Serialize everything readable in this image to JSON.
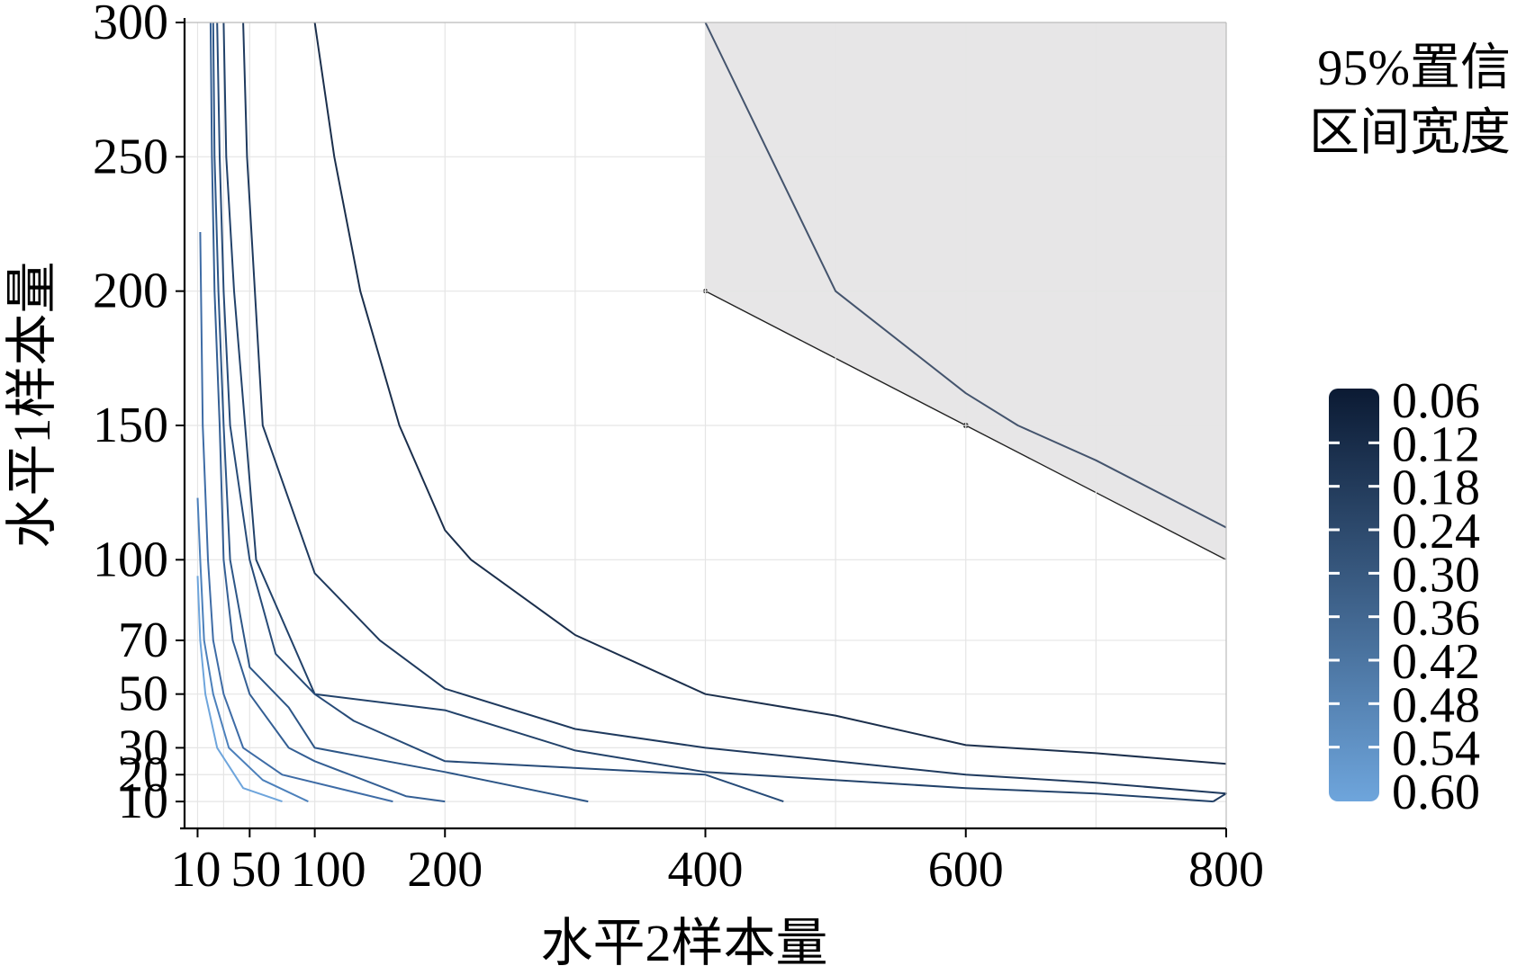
{
  "chart_data": {
    "type": "contour",
    "xlabel": "水平2样本量",
    "ylabel": "水平1样本量",
    "x_ticks": [
      10,
      50,
      100,
      200,
      400,
      600,
      800
    ],
    "y_ticks": [
      10,
      20,
      30,
      50,
      70,
      100,
      150,
      200,
      250,
      300
    ],
    "xlim": [
      0,
      800
    ],
    "ylim": [
      0,
      300
    ],
    "grid": true,
    "legend": {
      "title_line1": "95%置信",
      "title_line2": "区间宽度",
      "levels": [
        "0.06",
        "0.12",
        "0.18",
        "0.24",
        "0.30",
        "0.36",
        "0.42",
        "0.48",
        "0.54",
        "0.60"
      ],
      "color_dark": "#0b1a33",
      "color_light": "#6ea5dc"
    },
    "shaded_region": {
      "color": "#e7e6e7",
      "boundary": [
        [
          400,
          300
        ],
        [
          400,
          200
        ],
        [
          600,
          150
        ],
        [
          800,
          100
        ],
        [
          800,
          300
        ]
      ]
    },
    "series": [
      {
        "level": 0.06,
        "color": "#44546d",
        "points": [
          [
            400,
            300
          ],
          [
            450,
            250
          ],
          [
            500,
            200
          ],
          [
            600,
            162
          ],
          [
            640,
            150
          ],
          [
            700,
            137
          ],
          [
            800,
            112
          ]
        ]
      },
      {
        "level": 0.12,
        "color": "#1b2f4c",
        "points": [
          [
            100,
            300
          ],
          [
            115,
            250
          ],
          [
            135,
            200
          ],
          [
            165,
            150
          ],
          [
            200,
            111
          ],
          [
            220,
            100
          ],
          [
            300,
            72
          ],
          [
            400,
            50
          ],
          [
            500,
            42
          ],
          [
            600,
            31
          ],
          [
            700,
            28
          ],
          [
            800,
            24
          ]
        ]
      },
      {
        "level": 0.18,
        "color": "#1f3a5e",
        "points": [
          [
            45,
            300
          ],
          [
            48,
            250
          ],
          [
            60,
            150
          ],
          [
            100,
            95
          ],
          [
            150,
            70
          ],
          [
            200,
            52
          ],
          [
            300,
            37
          ],
          [
            400,
            30
          ],
          [
            500,
            25
          ],
          [
            600,
            20
          ],
          [
            700,
            17
          ],
          [
            800,
            13
          ],
          [
            790,
            10
          ]
        ]
      },
      {
        "level": 0.24,
        "color": "#22426a",
        "points": [
          [
            30,
            300
          ],
          [
            32,
            250
          ],
          [
            38,
            200
          ],
          [
            55,
            100
          ],
          [
            100,
            50
          ],
          [
            200,
            44
          ],
          [
            300,
            29
          ],
          [
            400,
            21
          ],
          [
            600,
            15
          ],
          [
            700,
            13
          ],
          [
            790,
            10
          ]
        ]
      },
      {
        "level": 0.3,
        "color": "#274b78",
        "points": [
          [
            25,
            300
          ],
          [
            27,
            250
          ],
          [
            30,
            200
          ],
          [
            35,
            150
          ],
          [
            50,
            100
          ],
          [
            70,
            65
          ],
          [
            100,
            50
          ],
          [
            130,
            40
          ],
          [
            200,
            25
          ],
          [
            400,
            20
          ],
          [
            460,
            10
          ]
        ]
      },
      {
        "level": 0.36,
        "color": "#2d5687",
        "points": [
          [
            22,
            300
          ],
          [
            23,
            250
          ],
          [
            26,
            200
          ],
          [
            30,
            150
          ],
          [
            35,
            100
          ],
          [
            50,
            60
          ],
          [
            80,
            45
          ],
          [
            100,
            30
          ],
          [
            200,
            21
          ],
          [
            310,
            10
          ]
        ]
      },
      {
        "level": 0.42,
        "color": "#345f94",
        "points": [
          [
            20,
            300
          ],
          [
            21,
            250
          ],
          [
            23,
            200
          ],
          [
            27,
            150
          ],
          [
            30,
            100
          ],
          [
            37,
            70
          ],
          [
            50,
            50
          ],
          [
            80,
            30
          ],
          [
            100,
            25
          ],
          [
            170,
            12
          ],
          [
            200,
            10
          ]
        ]
      },
      {
        "level": 0.48,
        "color": "#3e6ca6",
        "points": [
          [
            12,
            222
          ],
          [
            14,
            150
          ],
          [
            18,
            100
          ],
          [
            22,
            70
          ],
          [
            30,
            50
          ],
          [
            45,
            30
          ],
          [
            75,
            20
          ],
          [
            160,
            10
          ]
        ]
      },
      {
        "level": 0.54,
        "color": "#4c80bb",
        "points": [
          [
            10,
            123
          ],
          [
            12,
            100
          ],
          [
            15,
            70
          ],
          [
            22,
            50
          ],
          [
            34,
            30
          ],
          [
            60,
            18
          ],
          [
            95,
            10
          ]
        ]
      },
      {
        "level": 0.6,
        "color": "#6ea5dc",
        "points": [
          [
            10,
            94
          ],
          [
            12,
            70
          ],
          [
            16,
            50
          ],
          [
            25,
            30
          ],
          [
            45,
            15
          ],
          [
            75,
            10
          ]
        ]
      }
    ]
  }
}
